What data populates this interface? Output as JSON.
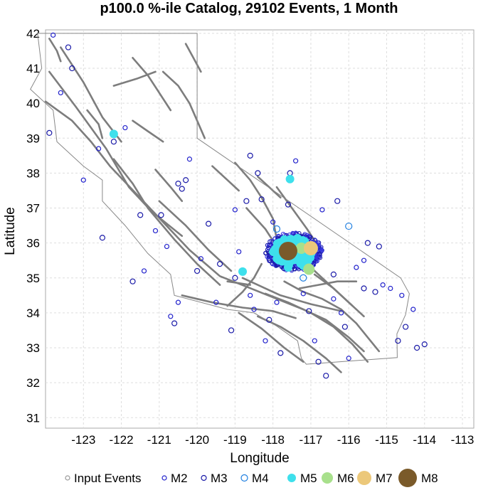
{
  "chart_data": {
    "type": "scatter",
    "title": "p100.0 %-ile Catalog, 29102 Events, 1 Month",
    "xlabel": "Longitude",
    "ylabel": "Latitude",
    "xlim": [
      -124,
      -112.7
    ],
    "ylim": [
      30.7,
      42.1
    ],
    "x_ticks": [
      -123,
      -122,
      -121,
      -120,
      -119,
      -118,
      -117,
      -116,
      -115,
      -114,
      -113
    ],
    "x_tick_labels": [
      "-123",
      "-122",
      "-121",
      "-120",
      "-119",
      "-118",
      "-117",
      "-116",
      "-115",
      "-114",
      "-113"
    ],
    "y_ticks": [
      31,
      32,
      33,
      34,
      35,
      36,
      37,
      38,
      39,
      40,
      41,
      42
    ],
    "y_tick_labels": [
      "31",
      "32",
      "33",
      "34",
      "35",
      "36",
      "37",
      "38",
      "39",
      "40",
      "41",
      "42"
    ],
    "grid": true,
    "legend_position": "bottom",
    "legend": [
      {
        "label": "Input Events",
        "color": "#999999",
        "style": "hollow",
        "size": 3
      },
      {
        "label": "M2",
        "color": "#2222cc",
        "style": "hollow",
        "size": 3
      },
      {
        "label": "M3",
        "color": "#1a1aa8",
        "style": "hollow",
        "size": 3.5
      },
      {
        "label": "M4",
        "color": "#1f7fe0",
        "style": "hollow",
        "size": 4.5
      },
      {
        "label": "M5",
        "color": "#3ee0ec",
        "style": "filled",
        "size": 6
      },
      {
        "label": "M6",
        "color": "#a8e08c",
        "style": "filled",
        "size": 8
      },
      {
        "label": "M7",
        "color": "#ecc87a",
        "style": "filled",
        "size": 10
      },
      {
        "label": "M8",
        "color": "#7a5a2a",
        "style": "filled",
        "size": 13
      }
    ],
    "series": [
      {
        "name": "M8",
        "x": [
          -117.6
        ],
        "y": [
          35.77
        ]
      },
      {
        "name": "M7",
        "x": [
          -117.0
        ],
        "y": [
          35.85
        ]
      },
      {
        "name": "M6",
        "x": [
          -117.25,
          -117.05
        ],
        "y": [
          35.85,
          35.25
        ]
      },
      {
        "name": "M5",
        "x": [
          -122.2,
          -118.8,
          -117.55,
          -117.5,
          -117.3,
          -117.2,
          -117.7,
          -117.85,
          -117.1,
          -117.4,
          -117.6
        ],
        "y": [
          39.12,
          35.18,
          37.83,
          35.5,
          36.05,
          35.35,
          36.1,
          35.6,
          35.6,
          35.9,
          35.3
        ]
      },
      {
        "name": "M4",
        "x": [
          -116.0,
          -117.9,
          -117.2
        ],
        "y": [
          36.48,
          36.4,
          35.0
        ]
      },
      {
        "name": "M3",
        "x": [
          -123.9,
          -123.4,
          -123.3,
          -122.2,
          -122.5,
          -121.7,
          -121.5,
          -120.95,
          -120.6,
          -120.5,
          -120.4,
          -120.3,
          -120.0,
          -119.7,
          -119.4,
          -119.0,
          -118.7,
          -118.4,
          -118.3,
          -118.1,
          -117.8,
          -117.55,
          -116.8,
          -116.6,
          -116.3,
          -116.1,
          -115.6,
          -115.3,
          -115.2,
          -114.7,
          -114.5,
          -114.2,
          -114.0,
          -119.1,
          -118.6,
          -117.6,
          -117.05,
          -116.4,
          -115.5
        ],
        "y": [
          39.15,
          41.6,
          41.0,
          38.9,
          36.15,
          34.9,
          36.8,
          36.8,
          33.7,
          37.7,
          37.55,
          37.8,
          35.2,
          36.55,
          35.4,
          35.0,
          37.2,
          38.0,
          37.25,
          33.8,
          32.85,
          38.0,
          32.6,
          32.2,
          37.2,
          33.6,
          34.7,
          34.6,
          35.9,
          33.2,
          33.6,
          33.0,
          33.1,
          33.5,
          38.5,
          37.1,
          34.05,
          35.1,
          36.0
        ]
      },
      {
        "name": "M2",
        "x": [
          -123.8,
          -123.6,
          -123.0,
          -121.9,
          -121.1,
          -120.8,
          -120.5,
          -120.2,
          -119.9,
          -119.5,
          -119.0,
          -118.9,
          -118.6,
          -118.5,
          -118.2,
          -117.9,
          -117.4,
          -117.2,
          -116.9,
          -116.7,
          -116.4,
          -116.2,
          -116.0,
          -115.8,
          -115.6,
          -115.1,
          -114.9,
          -114.6,
          -114.3,
          -122.6,
          -121.4,
          -120.7,
          -118.0
        ],
        "y": [
          41.95,
          40.3,
          37.8,
          39.3,
          36.35,
          35.9,
          34.3,
          38.4,
          35.55,
          34.3,
          36.95,
          35.75,
          34.5,
          34.1,
          33.2,
          34.3,
          38.35,
          34.55,
          33.2,
          36.95,
          34.4,
          34.0,
          32.7,
          35.3,
          35.5,
          34.8,
          34.7,
          34.5,
          34.1,
          38.7,
          35.2,
          33.9,
          36.6
        ]
      }
    ],
    "fault_traces": [
      [
        [
          -124.0,
          40.05
        ],
        [
          -123.3,
          39.5
        ],
        [
          -122.8,
          38.9
        ],
        [
          -122.3,
          38.2
        ],
        [
          -121.6,
          37.4
        ],
        [
          -120.9,
          36.6
        ],
        [
          -120.2,
          35.8
        ],
        [
          -119.4,
          35.05
        ],
        [
          -118.7,
          34.75
        ],
        [
          -117.9,
          34.4
        ],
        [
          -117.2,
          34.1
        ],
        [
          -116.6,
          33.8
        ],
        [
          -116.0,
          33.3
        ],
        [
          -115.6,
          32.9
        ]
      ],
      [
        [
          -123.9,
          40.9
        ],
        [
          -123.2,
          39.9
        ],
        [
          -122.4,
          38.7
        ],
        [
          -121.8,
          37.6
        ],
        [
          -121.2,
          36.9
        ],
        [
          -120.4,
          36.2
        ]
      ],
      [
        [
          -123.6,
          41.6
        ],
        [
          -123.0,
          40.6
        ],
        [
          -122.5,
          39.6
        ],
        [
          -122.0,
          38.9
        ]
      ],
      [
        [
          -122.2,
          38.4
        ],
        [
          -121.7,
          37.7
        ],
        [
          -121.3,
          37.0
        ],
        [
          -120.6,
          36.1
        ],
        [
          -120.0,
          35.4
        ],
        [
          -119.4,
          34.8
        ]
      ],
      [
        [
          -121.0,
          37.2
        ],
        [
          -120.3,
          36.5
        ],
        [
          -119.7,
          35.8
        ],
        [
          -119.1,
          35.2
        ]
      ],
      [
        [
          -120.4,
          34.5
        ],
        [
          -119.6,
          34.3
        ],
        [
          -118.8,
          34.15
        ],
        [
          -118.0,
          34.05
        ],
        [
          -117.4,
          33.85
        ]
      ],
      [
        [
          -118.8,
          35.0
        ],
        [
          -118.4,
          34.8
        ],
        [
          -117.8,
          34.5
        ],
        [
          -117.0,
          34.25
        ],
        [
          -116.2,
          34.05
        ]
      ],
      [
        [
          -118.2,
          34.55
        ],
        [
          -117.6,
          34.3
        ],
        [
          -117.0,
          34.0
        ],
        [
          -116.4,
          33.6
        ],
        [
          -115.9,
          33.1
        ],
        [
          -115.5,
          32.6
        ]
      ],
      [
        [
          -118.4,
          33.9
        ],
        [
          -117.8,
          33.6
        ],
        [
          -117.2,
          33.2
        ],
        [
          -116.6,
          32.7
        ],
        [
          -116.2,
          32.3
        ]
      ],
      [
        [
          -118.9,
          34.0
        ],
        [
          -118.3,
          33.55
        ],
        [
          -117.7,
          33.0
        ],
        [
          -117.2,
          32.6
        ]
      ],
      [
        [
          -119.0,
          38.3
        ],
        [
          -118.6,
          37.8
        ],
        [
          -118.3,
          37.3
        ],
        [
          -118.0,
          36.7
        ],
        [
          -117.9,
          36.1
        ]
      ],
      [
        [
          -118.7,
          37.0
        ],
        [
          -118.2,
          36.4
        ],
        [
          -117.9,
          35.9
        ],
        [
          -117.6,
          35.5
        ]
      ],
      [
        [
          -117.9,
          37.6
        ],
        [
          -117.5,
          37.0
        ],
        [
          -117.1,
          36.4
        ],
        [
          -116.8,
          35.9
        ]
      ],
      [
        [
          -117.2,
          35.5
        ],
        [
          -116.7,
          35.0
        ],
        [
          -116.3,
          34.6
        ],
        [
          -115.9,
          34.2
        ]
      ],
      [
        [
          -116.9,
          35.1
        ],
        [
          -116.4,
          34.7
        ],
        [
          -116.0,
          34.3
        ],
        [
          -115.6,
          33.9
        ]
      ],
      [
        [
          -117.7,
          34.9
        ],
        [
          -117.2,
          34.6
        ],
        [
          -116.7,
          34.4
        ],
        [
          -116.2,
          34.1
        ]
      ],
      [
        [
          -116.2,
          34.1
        ],
        [
          -115.8,
          33.7
        ],
        [
          -115.5,
          33.3
        ],
        [
          -115.2,
          32.9
        ]
      ],
      [
        [
          -121.7,
          41.3
        ],
        [
          -121.3,
          40.8
        ],
        [
          -121.0,
          40.3
        ],
        [
          -120.7,
          39.8
        ]
      ],
      [
        [
          -120.9,
          40.9
        ],
        [
          -120.5,
          40.5
        ],
        [
          -120.2,
          40.0
        ],
        [
          -120.0,
          39.5
        ],
        [
          -119.8,
          39.0
        ]
      ],
      [
        [
          -120.3,
          41.7
        ],
        [
          -120.1,
          41.3
        ],
        [
          -119.9,
          40.9
        ]
      ],
      [
        [
          -122.2,
          40.5
        ],
        [
          -121.6,
          40.7
        ],
        [
          -121.1,
          40.9
        ]
      ],
      [
        [
          -121.7,
          39.5
        ],
        [
          -121.3,
          39.2
        ],
        [
          -120.9,
          38.9
        ]
      ],
      [
        [
          -121.1,
          38.1
        ],
        [
          -120.7,
          37.6
        ],
        [
          -120.4,
          37.2
        ]
      ],
      [
        [
          -119.6,
          38.2
        ],
        [
          -119.2,
          37.8
        ],
        [
          -118.9,
          37.5
        ]
      ],
      [
        [
          -118.4,
          37.9
        ],
        [
          -118.1,
          37.6
        ],
        [
          -117.8,
          37.3
        ]
      ],
      [
        [
          -119.2,
          34.9
        ],
        [
          -118.9,
          34.85
        ],
        [
          -118.6,
          34.8
        ]
      ],
      [
        [
          -119.2,
          34.2
        ],
        [
          -118.8,
          34.6
        ],
        [
          -118.5,
          35.0
        ],
        [
          -118.3,
          35.4
        ]
      ],
      [
        [
          -117.3,
          34.7
        ],
        [
          -116.8,
          34.8
        ],
        [
          -116.3,
          34.9
        ],
        [
          -115.8,
          34.9
        ]
      ],
      [
        [
          -123.9,
          41.85
        ],
        [
          -123.7,
          41.5
        ],
        [
          -123.6,
          41.2
        ]
      ],
      [
        [
          -122.9,
          39.8
        ],
        [
          -122.6,
          39.4
        ],
        [
          -122.5,
          39.0
        ]
      ]
    ],
    "state_boundary": [
      [
        -124.21,
        42.0
      ],
      [
        -120.0,
        42.0
      ],
      [
        -120.0,
        39.0
      ],
      [
        -114.63,
        35.0
      ],
      [
        -114.4,
        34.55
      ],
      [
        -114.5,
        33.95
      ],
      [
        -114.73,
        33.4
      ],
      [
        -114.72,
        32.72
      ],
      [
        -117.12,
        32.53
      ],
      [
        -117.25,
        32.7
      ],
      [
        -117.35,
        33.2
      ],
      [
        -117.9,
        33.62
      ],
      [
        -118.5,
        34.0
      ],
      [
        -119.2,
        34.1
      ],
      [
        -120.6,
        34.5
      ],
      [
        -120.7,
        35.1
      ],
      [
        -121.3,
        35.7
      ],
      [
        -121.9,
        36.5
      ],
      [
        -122.5,
        37.2
      ],
      [
        -122.5,
        37.8
      ],
      [
        -123.0,
        38.2
      ],
      [
        -123.7,
        38.9
      ],
      [
        -123.8,
        39.8
      ],
      [
        -124.4,
        40.4
      ],
      [
        -124.1,
        41.0
      ],
      [
        -124.21,
        42.0
      ]
    ]
  }
}
